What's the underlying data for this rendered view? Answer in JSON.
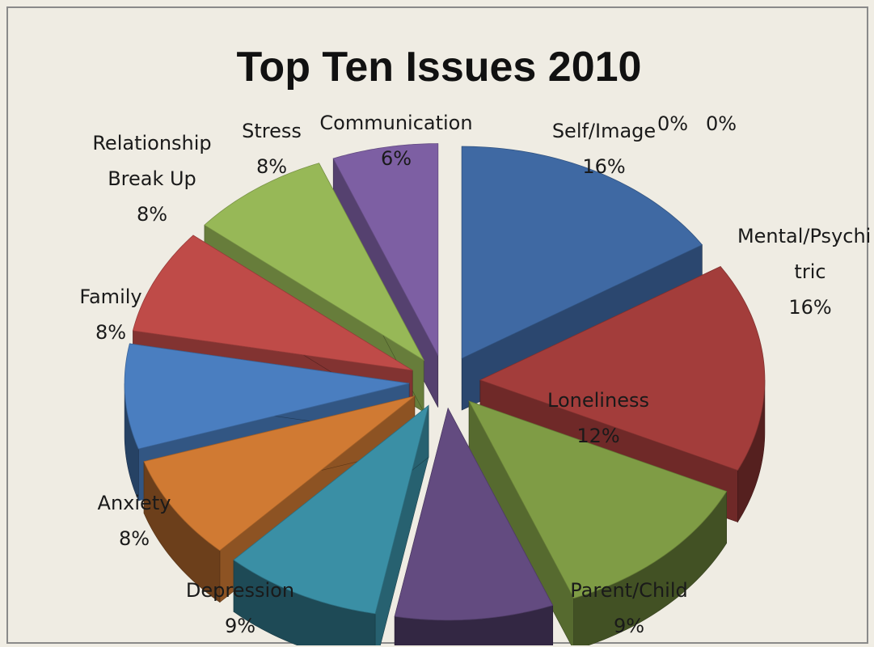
{
  "chart_data": {
    "type": "pie",
    "title": "Top Ten Issues 2010",
    "slices": [
      {
        "name": "Self/Image",
        "value": 16,
        "label_lines": [
          "Self/Image",
          "16%"
        ],
        "color": "#3f69a3"
      },
      {
        "name": "Mental/Psychiatric",
        "value": 16,
        "label_lines": [
          "Mental/Psychia",
          "tric",
          "16%"
        ],
        "color": "#a33d3b"
      },
      {
        "name": "Loneliness",
        "value": 12,
        "label_lines": [
          "Loneliness",
          "12%"
        ],
        "color": "#7f9c45"
      },
      {
        "name": "Parent/Child",
        "value": 9,
        "label_lines": [
          "Parent/Child",
          "9%"
        ],
        "color": "#634b80"
      },
      {
        "name": "Depression",
        "value": 9,
        "label_lines": [
          "Depression",
          "9%"
        ],
        "color": "#3a8fa5"
      },
      {
        "name": "Anxiety",
        "value": 8,
        "label_lines": [
          "Anxiety",
          "8%"
        ],
        "color": "#d07a33"
      },
      {
        "name": "Family",
        "value": 8,
        "label_lines": [
          "Family",
          "8%"
        ],
        "color": "#4a7ec0"
      },
      {
        "name": "Relationship Break Up",
        "value": 8,
        "label_lines": [
          "Relationship",
          "Break Up",
          "8%"
        ],
        "color": "#bf4b48"
      },
      {
        "name": "Stress",
        "value": 8,
        "label_lines": [
          "Stress",
          "8%"
        ],
        "color": "#97b857"
      },
      {
        "name": "Communication",
        "value": 6,
        "label_lines": [
          "Communication",
          "6%"
        ],
        "color": "#7d5fa3"
      }
    ],
    "zero_labels": [
      "0%",
      "0%"
    ],
    "legend": "none",
    "style": "3d-exploded"
  }
}
